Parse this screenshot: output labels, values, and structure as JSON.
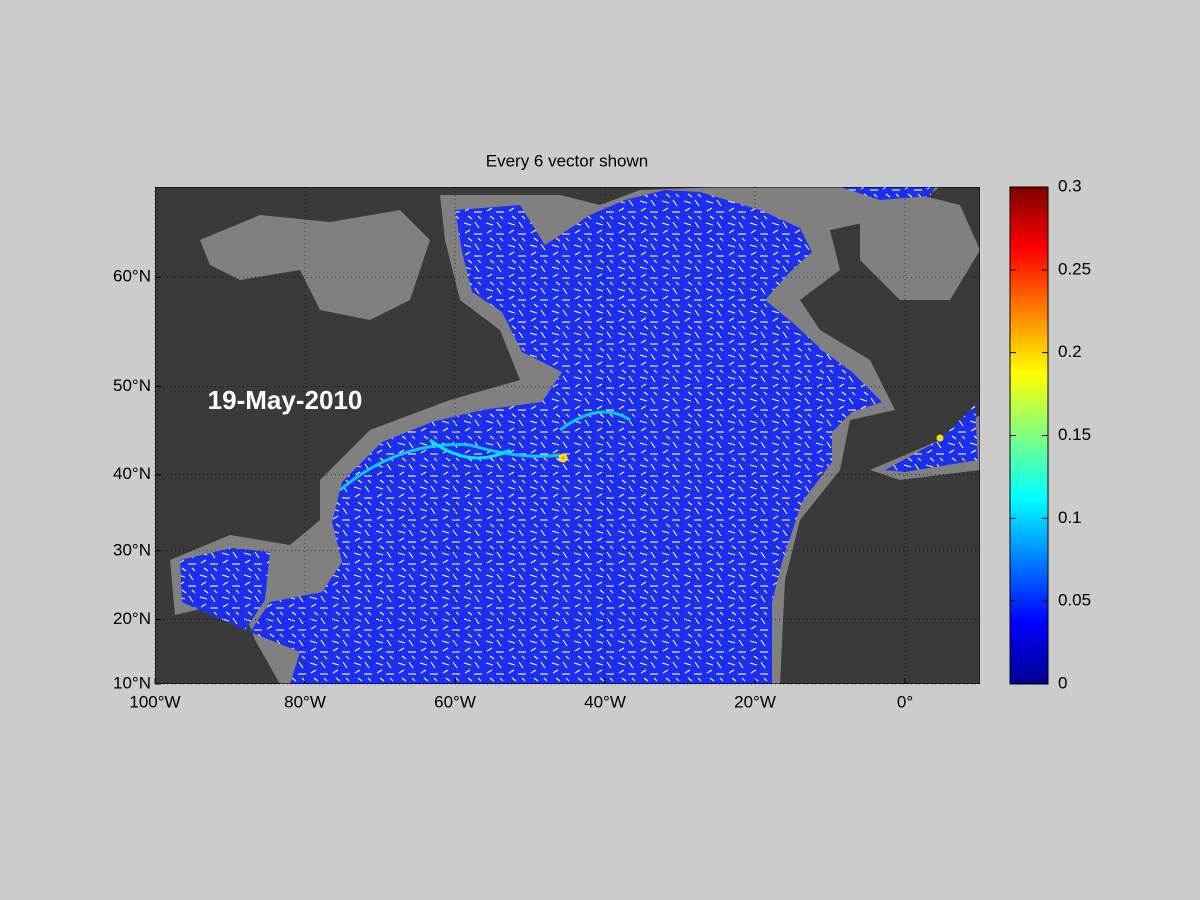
{
  "title": "Every 6 vector shown",
  "date_label": "19-May-2010",
  "map": {
    "lonlim": [
      -100,
      10
    ],
    "latlim": [
      10,
      66.5
    ],
    "grid": true,
    "lon_ticks": [
      {
        "value": -100,
        "label": "100°W"
      },
      {
        "value": -80,
        "label": "80°W"
      },
      {
        "value": -60,
        "label": "60°W"
      },
      {
        "value": -40,
        "label": "40°W"
      },
      {
        "value": -20,
        "label": "20°W"
      },
      {
        "value": 0,
        "label": "0°"
      }
    ],
    "lat_ticks": [
      {
        "value": 10,
        "label": "10°N"
      },
      {
        "value": 20,
        "label": "20°N"
      },
      {
        "value": 30,
        "label": "30°N"
      },
      {
        "value": 40,
        "label": "40°N"
      },
      {
        "value": 50,
        "label": "50°N"
      },
      {
        "value": 60,
        "label": "60°N"
      }
    ]
  },
  "colorbar": {
    "colormap": "jet",
    "lim": [
      0,
      0.3
    ],
    "ticks": [
      0,
      0.05,
      0.1,
      0.15,
      0.2,
      0.25,
      0.3
    ]
  }
}
